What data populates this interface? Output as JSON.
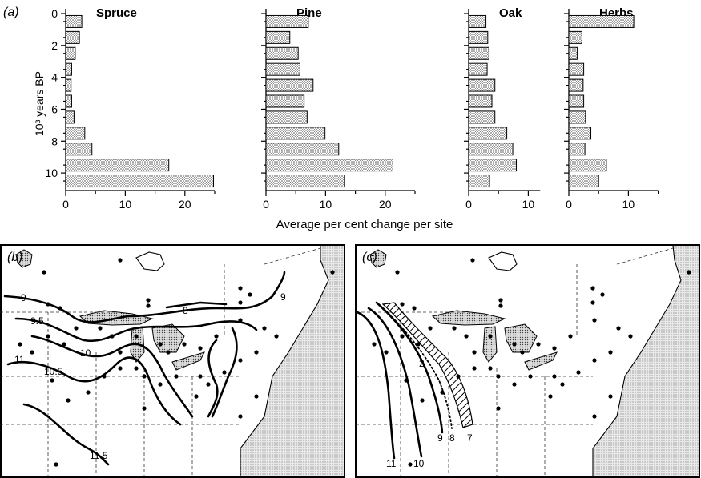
{
  "panel_a_label": "(a)",
  "panel_b_label": "(b)",
  "panel_c_label": "(c)",
  "ylabel": "10³ years BP",
  "xlabel": "Average per cent change per site",
  "chart_data": {
    "type": "bar",
    "orientation": "horizontal",
    "y_ticks": [
      "0",
      "2",
      "4",
      "6",
      "8",
      "10"
    ],
    "ylim": [
      0,
      11
    ],
    "categories_years_bp_thousands": [
      0.5,
      1.5,
      2.5,
      3.5,
      4.5,
      5.5,
      6.5,
      7.5,
      8.5,
      9.5,
      10.5
    ],
    "panels": [
      {
        "name": "Spruce",
        "xlim": [
          0,
          25
        ],
        "xticks": [
          "0",
          "10",
          "20"
        ],
        "xtick_values": [
          0,
          10,
          20
        ],
        "values": [
          2.7,
          2.3,
          1.6,
          1.0,
          0.9,
          1.0,
          1.4,
          3.2,
          4.4,
          17.3,
          24.8
        ]
      },
      {
        "name": "Pine",
        "xlim": [
          0,
          25
        ],
        "xticks": [
          "0",
          "10",
          "20"
        ],
        "xtick_values": [
          0,
          10,
          20
        ],
        "values": [
          7.1,
          4.0,
          5.4,
          5.7,
          7.9,
          6.4,
          6.9,
          9.9,
          12.2,
          21.3,
          13.2
        ]
      },
      {
        "name": "Oak",
        "xlim": [
          0,
          12
        ],
        "xticks": [
          "0",
          "10"
        ],
        "xtick_values": [
          0,
          10
        ],
        "values": [
          2.9,
          3.2,
          3.4,
          3.1,
          4.4,
          3.9,
          4.4,
          6.4,
          7.4,
          8.0,
          3.5
        ]
      },
      {
        "name": "Herbs",
        "xlim": [
          0,
          15
        ],
        "xticks": [
          "0",
          "10"
        ],
        "xtick_values": [
          0,
          10
        ],
        "values": [
          10.9,
          2.2,
          1.4,
          2.5,
          2.4,
          2.5,
          2.8,
          3.7,
          2.7,
          6.3,
          5.0
        ]
      }
    ]
  },
  "map_b_isolines": [
    "8",
    "9",
    "9",
    "9.5",
    "10",
    "10.5",
    "11",
    "11.5"
  ],
  "map_c_isolines": [
    "11",
    "10",
    "9",
    "8",
    "7",
    "2"
  ]
}
